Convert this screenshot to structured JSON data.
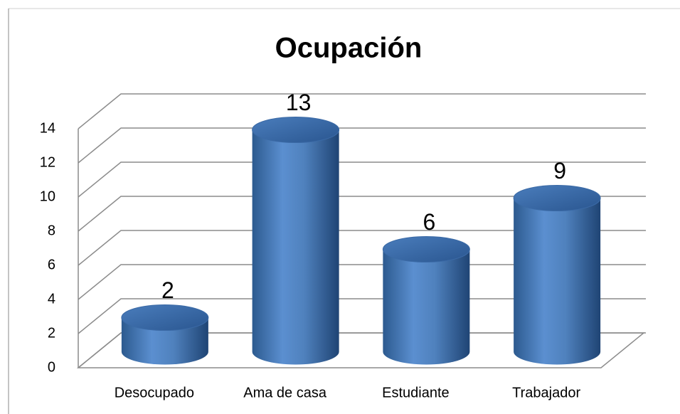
{
  "chart_data": {
    "type": "bar3d",
    "title": "Ocupación",
    "categories": [
      "Desocupado",
      "Ama de casa",
      "Estudiante",
      "Trabajador"
    ],
    "values": [
      2,
      13,
      6,
      9
    ],
    "color": "#4f81bd",
    "ylim": [
      0,
      14
    ],
    "yticks": [
      0,
      2,
      4,
      6,
      8,
      10,
      12,
      14
    ],
    "grid": true
  }
}
